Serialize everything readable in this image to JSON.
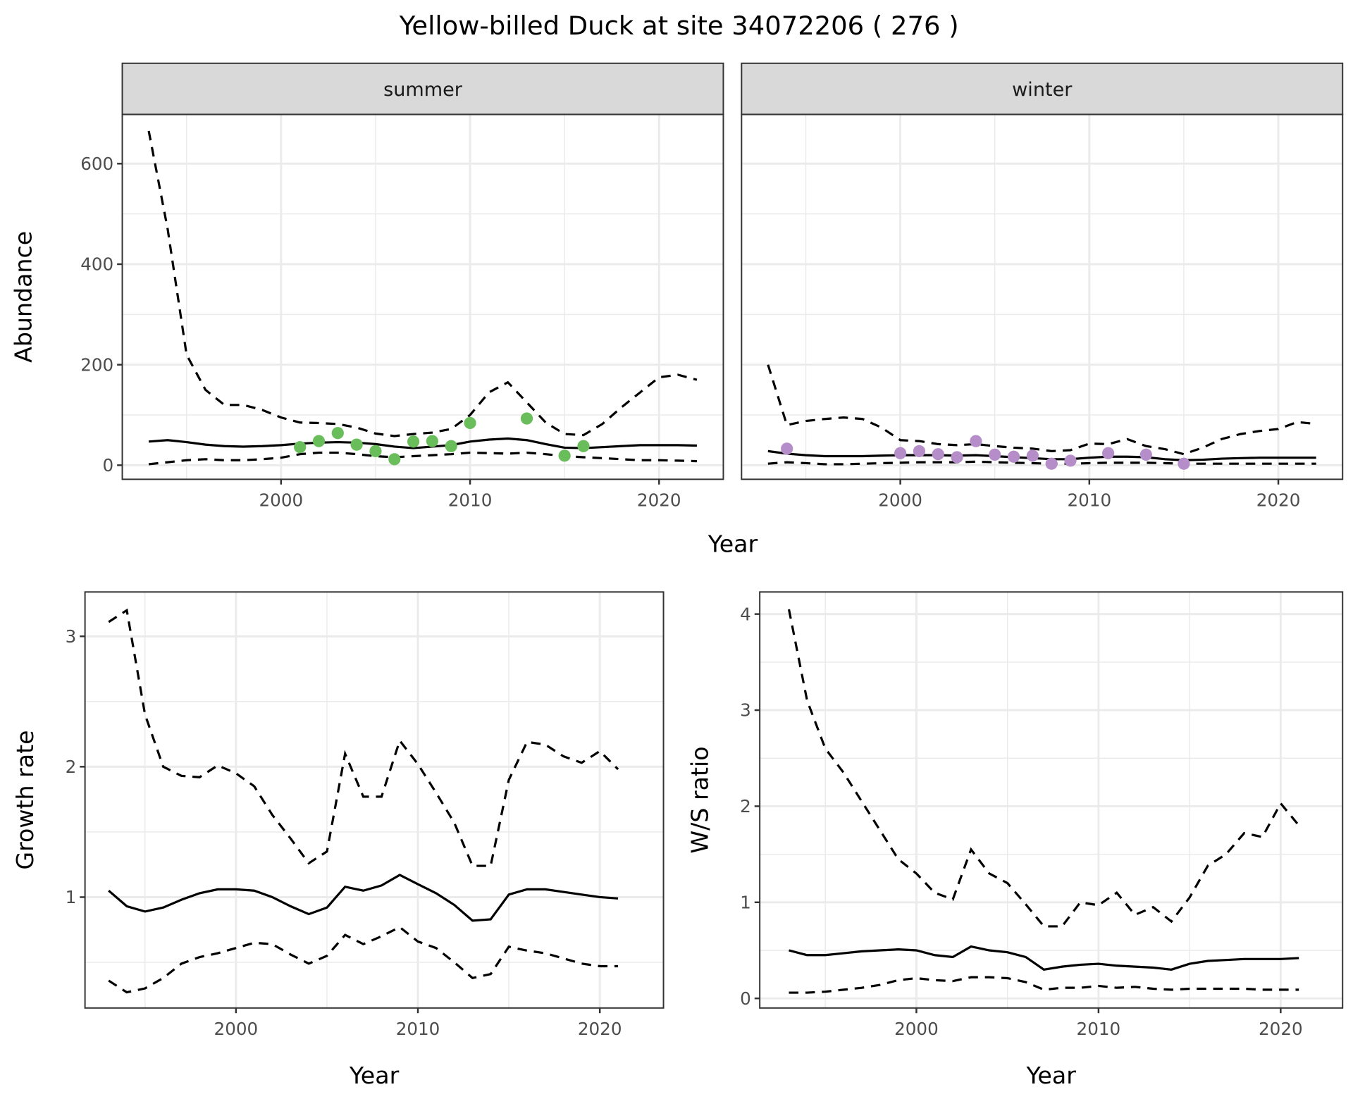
{
  "title": "Yellow-billed Duck at site 34072206 ( 276 )",
  "colors": {
    "summer": "#6abd5b",
    "winter": "#b58ec9",
    "line": "#000000",
    "grid": "#ebebeb",
    "strip": "#d9d9d9"
  },
  "chart_data": [
    {
      "type": "line",
      "panel": "summer",
      "facet_label": "summer",
      "xlabel": "",
      "ylabel": "Abundance",
      "xlim": [
        1991.6,
        2023.4
      ],
      "ylim": [
        -28,
        698
      ],
      "xticks": [
        2000,
        2010,
        2020
      ],
      "yticks": [
        0,
        200,
        400,
        600
      ],
      "grid": true,
      "x": [
        1993,
        1994,
        1995,
        1996,
        1997,
        1998,
        1999,
        2000,
        2001,
        2002,
        2003,
        2004,
        2005,
        2006,
        2007,
        2008,
        2009,
        2010,
        2011,
        2012,
        2013,
        2014,
        2015,
        2016,
        2017,
        2018,
        2019,
        2020,
        2021,
        2022
      ],
      "mid": [
        47,
        50,
        46,
        41,
        38,
        37,
        38,
        40,
        43,
        45,
        46,
        45,
        42,
        37,
        34,
        37,
        40,
        47,
        51,
        53,
        50,
        42,
        35,
        34,
        36,
        38,
        40,
        40,
        40,
        39
      ],
      "upper": [
        665,
        470,
        220,
        150,
        120,
        120,
        110,
        95,
        85,
        84,
        82,
        75,
        63,
        58,
        62,
        65,
        72,
        100,
        145,
        165,
        125,
        85,
        62,
        60,
        82,
        115,
        145,
        175,
        180,
        170
      ],
      "lower": [
        2,
        6,
        10,
        12,
        10,
        10,
        12,
        15,
        22,
        25,
        25,
        22,
        18,
        16,
        18,
        20,
        22,
        25,
        24,
        23,
        25,
        22,
        18,
        16,
        14,
        12,
        10,
        10,
        9,
        8
      ],
      "points": {
        "x": [
          2001,
          2002,
          2003,
          2004,
          2005,
          2006,
          2007,
          2008,
          2009,
          2010,
          2013,
          2015,
          2016
        ],
        "y": [
          36,
          48,
          64,
          41,
          28,
          12,
          47,
          48,
          38,
          84,
          93,
          19,
          38
        ]
      }
    },
    {
      "type": "line",
      "panel": "winter",
      "facet_label": "winter",
      "xlabel": "",
      "ylabel": "",
      "xlim": [
        1991.6,
        2023.4
      ],
      "ylim": [
        -28,
        698
      ],
      "xticks": [
        2000,
        2010,
        2020
      ],
      "yticks": [
        0,
        200,
        400,
        600
      ],
      "grid": true,
      "x": [
        1993,
        1994,
        1995,
        1996,
        1997,
        1998,
        1999,
        2000,
        2001,
        2002,
        2003,
        2004,
        2005,
        2006,
        2007,
        2008,
        2009,
        2010,
        2011,
        2012,
        2013,
        2014,
        2015,
        2016,
        2017,
        2018,
        2019,
        2020,
        2021,
        2022
      ],
      "mid": [
        28,
        23,
        20,
        18,
        18,
        18,
        19,
        20,
        20,
        20,
        19,
        20,
        18,
        16,
        14,
        12,
        12,
        15,
        17,
        17,
        16,
        12,
        10,
        11,
        13,
        14,
        15,
        15,
        15,
        15
      ],
      "upper": [
        200,
        80,
        88,
        92,
        95,
        92,
        75,
        50,
        48,
        42,
        40,
        42,
        38,
        35,
        33,
        28,
        30,
        43,
        42,
        52,
        38,
        32,
        22,
        35,
        52,
        62,
        68,
        72,
        86,
        82
      ],
      "lower": [
        3,
        6,
        4,
        2,
        2,
        3,
        4,
        5,
        6,
        6,
        6,
        7,
        6,
        5,
        4,
        3,
        3,
        4,
        5,
        5,
        5,
        4,
        3,
        3,
        3,
        3,
        3,
        3,
        3,
        3
      ],
      "points": {
        "x": [
          1994,
          2000,
          2001,
          2002,
          2003,
          2004,
          2005,
          2006,
          2007,
          2008,
          2009,
          2011,
          2013,
          2015
        ],
        "y": [
          33,
          24,
          28,
          22,
          16,
          48,
          21,
          17,
          19,
          3,
          9,
          24,
          21,
          3
        ]
      }
    },
    {
      "type": "line",
      "panel": "growth",
      "xlabel": "Year",
      "ylabel": "Growth rate",
      "xlim": [
        1991.7,
        2023.5
      ],
      "ylim": [
        0.15,
        3.34
      ],
      "xticks": [
        2000,
        2010,
        2020
      ],
      "yticks": [
        1,
        2,
        3
      ],
      "grid": true,
      "x": [
        1993,
        1994,
        1995,
        1996,
        1997,
        1998,
        1999,
        2000,
        2001,
        2002,
        2003,
        2004,
        2005,
        2006,
        2007,
        2008,
        2009,
        2010,
        2011,
        2012,
        2013,
        2014,
        2015,
        2016,
        2017,
        2018,
        2019,
        2020,
        2021
      ],
      "mid": [
        1.05,
        0.93,
        0.89,
        0.92,
        0.98,
        1.03,
        1.06,
        1.06,
        1.05,
        1.0,
        0.93,
        0.87,
        0.92,
        1.08,
        1.05,
        1.09,
        1.17,
        1.1,
        1.03,
        0.94,
        0.82,
        0.83,
        1.02,
        1.06,
        1.06,
        1.04,
        1.02,
        1.0,
        0.99
      ],
      "upper": [
        3.11,
        3.2,
        2.4,
        2.0,
        1.93,
        1.92,
        2.01,
        1.95,
        1.85,
        1.63,
        1.45,
        1.26,
        1.35,
        2.1,
        1.77,
        1.77,
        2.2,
        2.02,
        1.8,
        1.57,
        1.24,
        1.24,
        1.9,
        2.19,
        2.17,
        2.08,
        2.03,
        2.12,
        1.98
      ],
      "lower": [
        0.36,
        0.27,
        0.3,
        0.38,
        0.49,
        0.54,
        0.57,
        0.61,
        0.65,
        0.64,
        0.56,
        0.49,
        0.55,
        0.71,
        0.64,
        0.7,
        0.77,
        0.66,
        0.61,
        0.5,
        0.38,
        0.41,
        0.62,
        0.59,
        0.57,
        0.53,
        0.49,
        0.47,
        0.47
      ]
    },
    {
      "type": "line",
      "panel": "ratio",
      "xlabel": "Year",
      "ylabel": "W/S ratio",
      "xlim": [
        1991.4,
        2023.4
      ],
      "ylim": [
        -0.1,
        4.23
      ],
      "xticks": [
        2000,
        2010,
        2020
      ],
      "yticks": [
        0,
        1,
        2,
        3,
        4
      ],
      "grid": true,
      "x": [
        1993,
        1994,
        1995,
        1996,
        1997,
        1998,
        1999,
        2000,
        2001,
        2002,
        2003,
        2004,
        2005,
        2006,
        2007,
        2008,
        2009,
        2010,
        2011,
        2012,
        2013,
        2014,
        2015,
        2016,
        2017,
        2018,
        2019,
        2020,
        2021
      ],
      "mid": [
        0.5,
        0.45,
        0.45,
        0.47,
        0.49,
        0.5,
        0.51,
        0.5,
        0.45,
        0.43,
        0.54,
        0.5,
        0.48,
        0.43,
        0.3,
        0.33,
        0.35,
        0.36,
        0.34,
        0.33,
        0.32,
        0.3,
        0.36,
        0.39,
        0.4,
        0.41,
        0.41,
        0.41,
        0.42
      ],
      "upper": [
        4.05,
        3.1,
        2.6,
        2.35,
        2.05,
        1.75,
        1.45,
        1.3,
        1.1,
        1.03,
        1.55,
        1.3,
        1.2,
        0.98,
        0.75,
        0.75,
        1.0,
        0.97,
        1.1,
        0.87,
        0.95,
        0.8,
        1.05,
        1.38,
        1.5,
        1.72,
        1.68,
        2.03,
        1.8
      ],
      "lower": [
        0.06,
        0.06,
        0.07,
        0.09,
        0.11,
        0.14,
        0.19,
        0.21,
        0.19,
        0.18,
        0.22,
        0.22,
        0.21,
        0.17,
        0.09,
        0.11,
        0.11,
        0.13,
        0.11,
        0.12,
        0.1,
        0.09,
        0.1,
        0.1,
        0.1,
        0.1,
        0.09,
        0.09,
        0.09
      ]
    }
  ],
  "shared_xlabel_top": "Year"
}
